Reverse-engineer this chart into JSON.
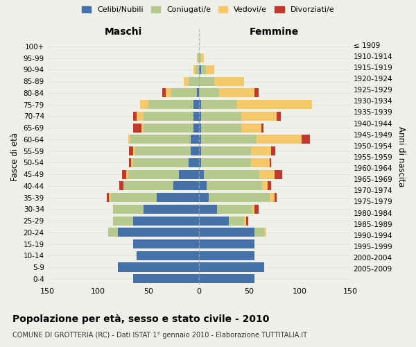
{
  "age_groups": [
    "0-4",
    "5-9",
    "10-14",
    "15-19",
    "20-24",
    "25-29",
    "30-34",
    "35-39",
    "40-44",
    "45-49",
    "50-54",
    "55-59",
    "60-64",
    "65-69",
    "70-74",
    "75-79",
    "80-84",
    "85-89",
    "90-94",
    "95-99",
    "100+"
  ],
  "birth_years": [
    "2005-2009",
    "2000-2004",
    "1995-1999",
    "1990-1994",
    "1985-1989",
    "1980-1984",
    "1975-1979",
    "1970-1974",
    "1965-1969",
    "1960-1964",
    "1955-1959",
    "1950-1954",
    "1945-1949",
    "1940-1944",
    "1935-1939",
    "1930-1934",
    "1925-1929",
    "1920-1924",
    "1915-1919",
    "1910-1914",
    "≤ 1909"
  ],
  "male": {
    "celibi": [
      65,
      80,
      62,
      65,
      80,
      65,
      55,
      42,
      25,
      20,
      10,
      8,
      8,
      5,
      5,
      5,
      2,
      0,
      0,
      0,
      0
    ],
    "coniugati": [
      0,
      0,
      0,
      0,
      10,
      20,
      30,
      45,
      50,
      50,
      55,
      55,
      60,
      50,
      50,
      45,
      25,
      10,
      3,
      1,
      0
    ],
    "vedovi": [
      0,
      0,
      0,
      0,
      0,
      0,
      0,
      2,
      0,
      2,
      2,
      2,
      2,
      2,
      7,
      8,
      6,
      5,
      2,
      1,
      0
    ],
    "divorziati": [
      0,
      0,
      0,
      0,
      0,
      0,
      0,
      2,
      4,
      4,
      2,
      4,
      0,
      8,
      3,
      0,
      3,
      0,
      0,
      0,
      0
    ]
  },
  "female": {
    "nubili": [
      55,
      65,
      55,
      55,
      55,
      30,
      18,
      10,
      8,
      5,
      2,
      2,
      2,
      2,
      2,
      2,
      0,
      0,
      2,
      0,
      0
    ],
    "coniugate": [
      0,
      0,
      0,
      0,
      10,
      15,
      35,
      60,
      55,
      55,
      50,
      50,
      55,
      40,
      40,
      35,
      20,
      15,
      5,
      2,
      0
    ],
    "vedove": [
      0,
      0,
      0,
      0,
      2,
      2,
      2,
      5,
      5,
      15,
      18,
      20,
      45,
      20,
      35,
      75,
      35,
      30,
      8,
      3,
      0
    ],
    "divorziate": [
      0,
      0,
      0,
      0,
      0,
      2,
      4,
      2,
      4,
      8,
      2,
      4,
      8,
      2,
      4,
      0,
      4,
      0,
      0,
      0,
      0
    ]
  },
  "colors": {
    "celibi": "#4472a8",
    "coniugati": "#b5c98e",
    "vedovi": "#f5c96a",
    "divorziati": "#c0392b"
  },
  "xlim": 150,
  "title": "Popolazione per età, sesso e stato civile - 2010",
  "subtitle": "COMUNE DI GROTTERIA (RC) - Dati ISTAT 1° gennaio 2010 - Elaborazione TUTTITALIA.IT",
  "ylabel_left": "Fasce di età",
  "ylabel_right": "Anni di nascita",
  "xlabel_left": "Maschi",
  "xlabel_right": "Femmine",
  "bg_color": "#f0f0eb"
}
